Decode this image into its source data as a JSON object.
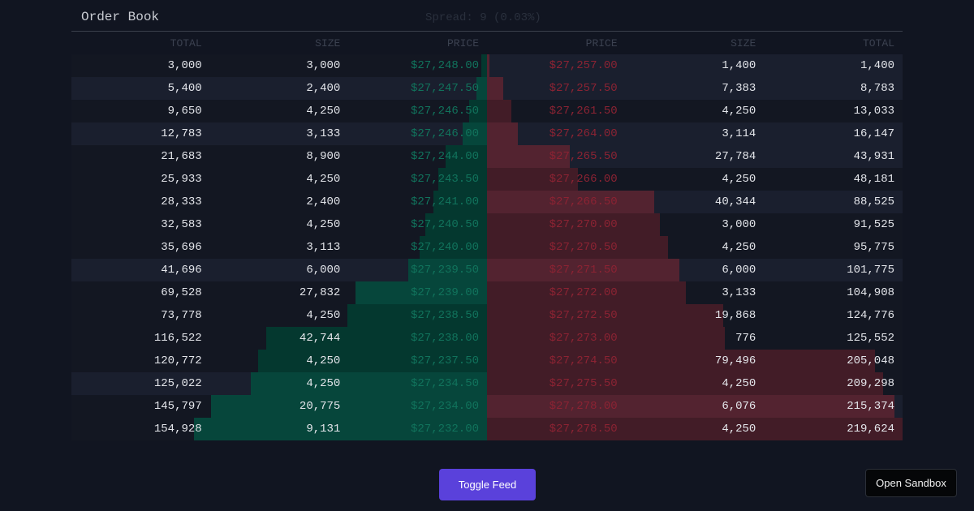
{
  "title": "Order Book",
  "spread": "Spread: 9 (0.03%)",
  "headers": {
    "bids": [
      "TOTAL",
      "SIZE",
      "PRICE"
    ],
    "asks": [
      "PRICE",
      "SIZE",
      "TOTAL"
    ]
  },
  "colors": {
    "bid": "#06463b",
    "ask": "#532330",
    "accent": "#5a41db"
  },
  "bids": [
    {
      "total": "3,000",
      "size": "3,000",
      "price": "$27,248.00",
      "total_value": 3000,
      "flash": false
    },
    {
      "total": "5,400",
      "size": "2,400",
      "price": "$27,247.50",
      "total_value": 5400,
      "flash": true
    },
    {
      "total": "9,650",
      "size": "4,250",
      "price": "$27,246.50",
      "total_value": 9650,
      "flash": false
    },
    {
      "total": "12,783",
      "size": "3,133",
      "price": "$27,246.00",
      "total_value": 12783,
      "flash": true
    },
    {
      "total": "21,683",
      "size": "8,900",
      "price": "$27,244.00",
      "total_value": 21683,
      "flash": false
    },
    {
      "total": "25,933",
      "size": "4,250",
      "price": "$27,243.50",
      "total_value": 25933,
      "flash": false
    },
    {
      "total": "28,333",
      "size": "2,400",
      "price": "$27,241.00",
      "total_value": 28333,
      "flash": false
    },
    {
      "total": "32,583",
      "size": "4,250",
      "price": "$27,240.50",
      "total_value": 32583,
      "flash": false
    },
    {
      "total": "35,696",
      "size": "3,113",
      "price": "$27,240.00",
      "total_value": 35696,
      "flash": false
    },
    {
      "total": "41,696",
      "size": "6,000",
      "price": "$27,239.50",
      "total_value": 41696,
      "flash": true
    },
    {
      "total": "69,528",
      "size": "27,832",
      "price": "$27,239.00",
      "total_value": 69528,
      "flash": false,
      "bright": true
    },
    {
      "total": "73,778",
      "size": "4,250",
      "price": "$27,238.50",
      "total_value": 73778,
      "flash": false
    },
    {
      "total": "116,522",
      "size": "42,744",
      "price": "$27,238.00",
      "total_value": 116522,
      "flash": false
    },
    {
      "total": "120,772",
      "size": "4,250",
      "price": "$27,237.50",
      "total_value": 120772,
      "flash": false
    },
    {
      "total": "125,022",
      "size": "4,250",
      "price": "$27,234.50",
      "total_value": 125022,
      "flash": true
    },
    {
      "total": "145,797",
      "size": "20,775",
      "price": "$27,234.00",
      "total_value": 145797,
      "flash": false,
      "bright": true
    },
    {
      "total": "154,928",
      "size": "9,131",
      "price": "$27,232.00",
      "total_value": 154928,
      "flash": false,
      "bright": true
    }
  ],
  "asks": [
    {
      "price": "$27,257.00",
      "size": "1,400",
      "total": "1,400",
      "total_value": 1400,
      "flash": true
    },
    {
      "price": "$27,257.50",
      "size": "7,383",
      "total": "8,783",
      "total_value": 8783,
      "flash": true
    },
    {
      "price": "$27,261.50",
      "size": "4,250",
      "total": "13,033",
      "total_value": 13033,
      "flash": false
    },
    {
      "price": "$27,264.00",
      "size": "3,114",
      "total": "16,147",
      "total_value": 16147,
      "flash": true
    },
    {
      "price": "$27,265.50",
      "size": "27,784",
      "total": "43,931",
      "total_value": 43931,
      "flash": true
    },
    {
      "price": "$27,266.00",
      "size": "4,250",
      "total": "48,181",
      "total_value": 48181,
      "flash": false
    },
    {
      "price": "$27,266.50",
      "size": "40,344",
      "total": "88,525",
      "total_value": 88525,
      "flash": true
    },
    {
      "price": "$27,270.00",
      "size": "3,000",
      "total": "91,525",
      "total_value": 91525,
      "flash": false
    },
    {
      "price": "$27,270.50",
      "size": "4,250",
      "total": "95,775",
      "total_value": 95775,
      "flash": false
    },
    {
      "price": "$27,271.50",
      "size": "6,000",
      "total": "101,775",
      "total_value": 101775,
      "flash": true
    },
    {
      "price": "$27,272.00",
      "size": "3,133",
      "total": "104,908",
      "total_value": 104908,
      "flash": false
    },
    {
      "price": "$27,272.50",
      "size": "19,868",
      "total": "124,776",
      "total_value": 124776,
      "flash": false
    },
    {
      "price": "$27,273.00",
      "size": "776",
      "total": "125,552",
      "total_value": 125552,
      "flash": false
    },
    {
      "price": "$27,274.50",
      "size": "79,496",
      "total": "205,048",
      "total_value": 205048,
      "flash": false
    },
    {
      "price": "$27,275.50",
      "size": "4,250",
      "total": "209,298",
      "total_value": 209298,
      "flash": false
    },
    {
      "price": "$27,278.00",
      "size": "6,076",
      "total": "215,374",
      "total_value": 215374,
      "flash": true
    },
    {
      "price": "$27,278.50",
      "size": "4,250",
      "total": "219,624",
      "total_value": 219624,
      "flash": false
    }
  ],
  "buttons": {
    "toggle": "Toggle Feed",
    "sandbox": "Open Sandbox"
  }
}
